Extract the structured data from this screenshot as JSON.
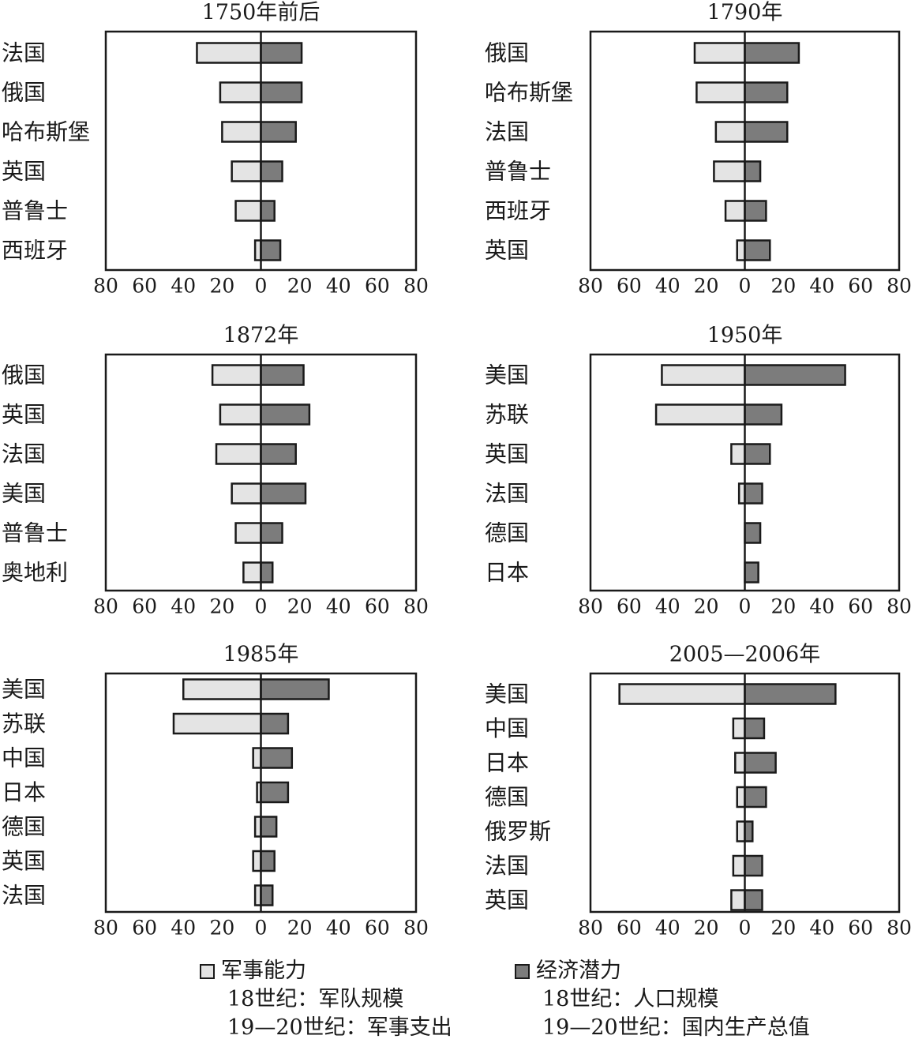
{
  "colors": {
    "military": "#e4e4e4",
    "economic": "#7c7c7c",
    "stroke": "#1a1a1a"
  },
  "chart_data": [
    {
      "type": "bar",
      "title": "1750年前后",
      "categories": [
        "法国",
        "俄国",
        "哈布斯堡",
        "英国",
        "普鲁士",
        "西班牙"
      ],
      "series": [
        {
          "name": "军事能力",
          "values": [
            33,
            21,
            20,
            15,
            13,
            3
          ]
        },
        {
          "name": "经济潜力",
          "values": [
            21,
            21,
            18,
            11,
            7,
            10
          ]
        }
      ],
      "xticks": [
        "80",
        "60",
        "40",
        "20",
        "0",
        "20",
        "40",
        "60",
        "80"
      ],
      "xlim": [
        -80,
        80
      ]
    },
    {
      "type": "bar",
      "title": "1790年",
      "categories": [
        "俄国",
        "哈布斯堡",
        "法国",
        "普鲁士",
        "西班牙",
        "英国"
      ],
      "series": [
        {
          "name": "军事能力",
          "values": [
            26,
            25,
            15,
            16,
            10,
            4
          ]
        },
        {
          "name": "经济潜力",
          "values": [
            28,
            22,
            22,
            8,
            11,
            13
          ]
        }
      ],
      "xticks": [
        "80",
        "60",
        "40",
        "20",
        "0",
        "20",
        "40",
        "60",
        "80"
      ],
      "xlim": [
        -80,
        80
      ]
    },
    {
      "type": "bar",
      "title": "1872年",
      "categories": [
        "俄国",
        "英国",
        "法国",
        "美国",
        "普鲁士",
        "奥地利"
      ],
      "series": [
        {
          "name": "军事能力",
          "values": [
            25,
            21,
            23,
            15,
            13,
            9
          ]
        },
        {
          "name": "经济潜力",
          "values": [
            22,
            25,
            18,
            23,
            11,
            6
          ]
        }
      ],
      "xticks": [
        "80",
        "60",
        "40",
        "20",
        "0",
        "20",
        "40",
        "60",
        "80"
      ],
      "xlim": [
        -80,
        80
      ]
    },
    {
      "type": "bar",
      "title": "1950年",
      "categories": [
        "美国",
        "苏联",
        "英国",
        "法国",
        "德国",
        "日本"
      ],
      "series": [
        {
          "name": "军事能力",
          "values": [
            43,
            46,
            7,
            3,
            0,
            0
          ]
        },
        {
          "name": "经济潜力",
          "values": [
            52,
            19,
            13,
            9,
            8,
            7
          ]
        }
      ],
      "xticks": [
        "80",
        "60",
        "40",
        "20",
        "0",
        "20",
        "40",
        "60",
        "80"
      ],
      "xlim": [
        -80,
        80
      ]
    },
    {
      "type": "bar",
      "title": "1985年",
      "categories": [
        "美国",
        "苏联",
        "中国",
        "日本",
        "德国",
        "英国",
        "法国"
      ],
      "series": [
        {
          "name": "军事能力",
          "values": [
            40,
            45,
            4,
            2,
            3,
            4,
            3
          ]
        },
        {
          "name": "经济潜力",
          "values": [
            35,
            14,
            16,
            14,
            8,
            7,
            6
          ]
        }
      ],
      "xticks": [
        "80",
        "60",
        "40",
        "20",
        "0",
        "20",
        "40",
        "60",
        "80"
      ],
      "xlim": [
        -80,
        80
      ]
    },
    {
      "type": "bar",
      "title": "2005—2006年",
      "categories": [
        "美国",
        "中国",
        "日本",
        "德国",
        "俄罗斯",
        "法国",
        "英国"
      ],
      "series": [
        {
          "name": "军事能力",
          "values": [
            65,
            6,
            5,
            4,
            4,
            6,
            7
          ]
        },
        {
          "name": "经济潜力",
          "values": [
            47,
            10,
            16,
            11,
            4,
            9,
            9
          ]
        }
      ],
      "xticks": [
        "80",
        "60",
        "40",
        "20",
        "0",
        "20",
        "40",
        "60",
        "80"
      ],
      "xlim": [
        -80,
        80
      ]
    }
  ],
  "legend": {
    "military": {
      "label": "军事能力",
      "line1": "18世纪：军队规模",
      "line2": "19—20世纪：军事支出"
    },
    "economic": {
      "label": "经济潜力",
      "line1": "18世纪：人口规模",
      "line2": "19—20世纪：国内生产总值"
    }
  }
}
